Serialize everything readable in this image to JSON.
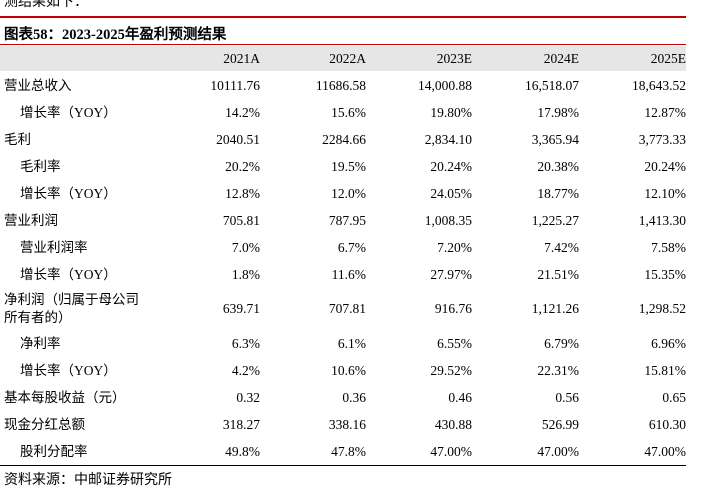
{
  "intro": "测结果如下：",
  "title": "图表58：2023-2025年盈利预测结果",
  "header": [
    "2021A",
    "2022A",
    "2023E",
    "2024E",
    "2025E"
  ],
  "rows": [
    {
      "label": [
        "营业总收入"
      ],
      "sub": false,
      "values": [
        "10111.76",
        "11686.58",
        "14,000.88",
        "16,518.07",
        "18,643.52"
      ]
    },
    {
      "label": [
        "增长率（YOY）"
      ],
      "sub": true,
      "values": [
        "14.2%",
        "15.6%",
        "19.80%",
        "17.98%",
        "12.87%"
      ]
    },
    {
      "label": [
        "毛利"
      ],
      "sub": false,
      "values": [
        "2040.51",
        "2284.66",
        "2,834.10",
        "3,365.94",
        "3,773.33"
      ]
    },
    {
      "label": [
        "毛利率"
      ],
      "sub": true,
      "values": [
        "20.2%",
        "19.5%",
        "20.24%",
        "20.38%",
        "20.24%"
      ]
    },
    {
      "label": [
        "增长率（YOY）"
      ],
      "sub": true,
      "values": [
        "12.8%",
        "12.0%",
        "24.05%",
        "18.77%",
        "12.10%"
      ]
    },
    {
      "label": [
        "营业利润"
      ],
      "sub": false,
      "values": [
        "705.81",
        "787.95",
        "1,008.35",
        "1,225.27",
        "1,413.30"
      ]
    },
    {
      "label": [
        "营业利润率"
      ],
      "sub": true,
      "values": [
        "7.0%",
        "6.7%",
        "7.20%",
        "7.42%",
        "7.58%"
      ]
    },
    {
      "label": [
        "增长率（YOY）"
      ],
      "sub": true,
      "values": [
        "1.8%",
        "11.6%",
        "27.97%",
        "21.51%",
        "15.35%"
      ]
    },
    {
      "label": [
        "净利润（归属于母公司",
        "所有者的）"
      ],
      "sub": false,
      "values": [
        "639.71",
        "707.81",
        "916.76",
        "1,121.26",
        "1,298.52"
      ]
    },
    {
      "label": [
        "净利率"
      ],
      "sub": true,
      "values": [
        "6.3%",
        "6.1%",
        "6.55%",
        "6.79%",
        "6.96%"
      ]
    },
    {
      "label": [
        "增长率（YOY）"
      ],
      "sub": true,
      "values": [
        "4.2%",
        "10.6%",
        "29.52%",
        "22.31%",
        "15.81%"
      ]
    },
    {
      "label": [
        "基本每股收益（元）"
      ],
      "sub": false,
      "values": [
        "0.32",
        "0.36",
        "0.46",
        "0.56",
        "0.65"
      ]
    },
    {
      "label": [
        "现金分红总额"
      ],
      "sub": false,
      "values": [
        "318.27",
        "338.16",
        "430.88",
        "526.99",
        "610.30"
      ]
    },
    {
      "label": [
        "股利分配率"
      ],
      "sub": true,
      "values": [
        "49.8%",
        "47.8%",
        "47.00%",
        "47.00%",
        "47.00%"
      ]
    }
  ],
  "source": "资料来源：中邮证券研究所"
}
